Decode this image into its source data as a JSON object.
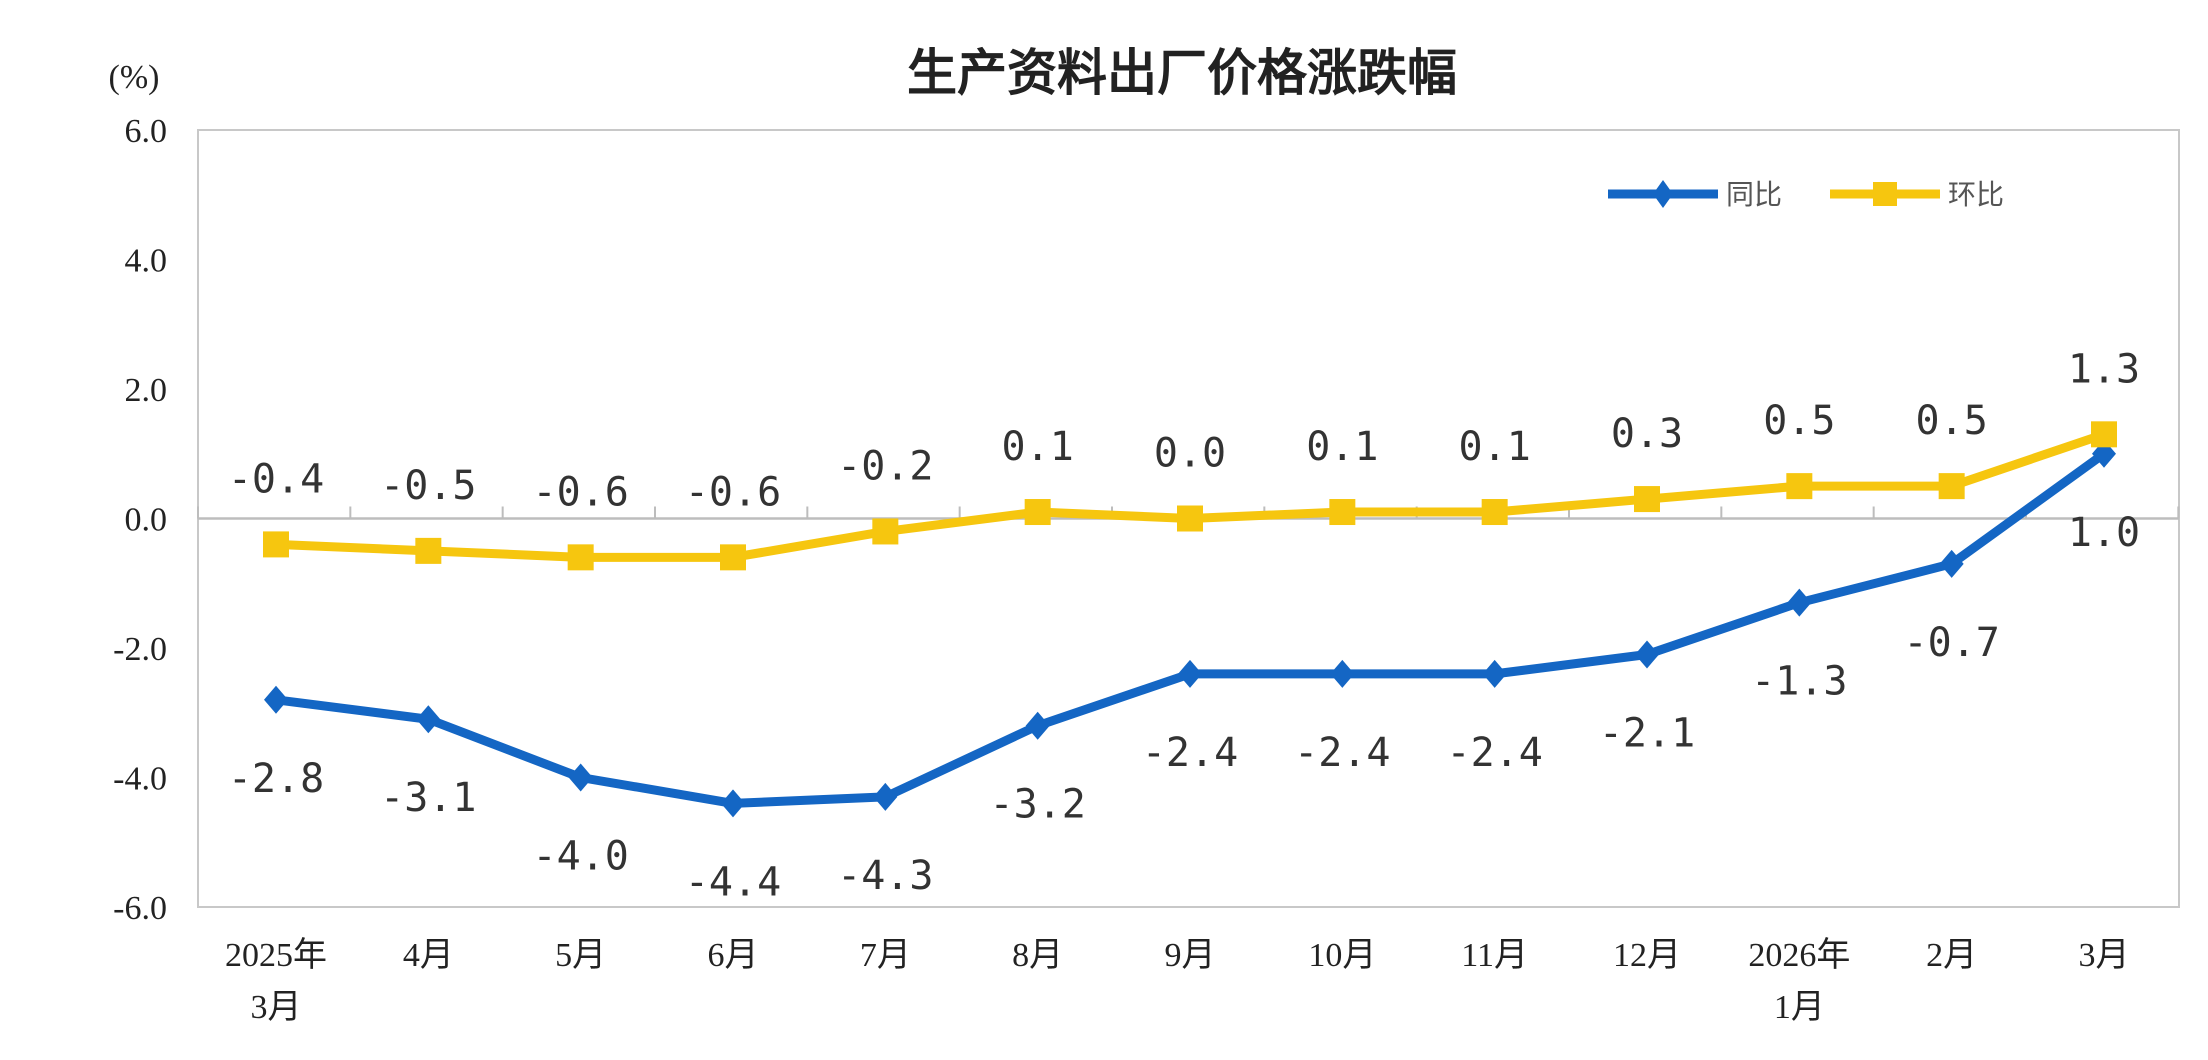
{
  "chart_data": {
    "type": "line",
    "title": "生产资料出厂价格涨跌幅",
    "ylabel": "(%)",
    "xlabel": "",
    "ylim": [
      -6.0,
      6.0
    ],
    "yticks": [
      "6.0",
      "4.0",
      "2.0",
      "0.0",
      "-2.0",
      "-4.0",
      "-6.0"
    ],
    "ytick_values": [
      6,
      4,
      2,
      0,
      -2,
      -4,
      -6
    ],
    "categories": [
      [
        "2025年",
        "3月"
      ],
      [
        "4月"
      ],
      [
        "5月"
      ],
      [
        "6月"
      ],
      [
        "7月"
      ],
      [
        "8月"
      ],
      [
        "9月"
      ],
      [
        "10月"
      ],
      [
        "11月"
      ],
      [
        "12月"
      ],
      [
        "2026年",
        "1月"
      ],
      [
        "2月"
      ],
      [
        "3月"
      ]
    ],
    "grid": false,
    "legend_position": "top-right",
    "series": [
      {
        "name": "同比",
        "color": "#1466c4",
        "marker": "diamond",
        "label_position": "below",
        "values": [
          -2.8,
          -3.1,
          -4.0,
          -4.4,
          -4.3,
          -3.2,
          -2.4,
          -2.4,
          -2.4,
          -2.1,
          -1.3,
          -0.7,
          1.0
        ],
        "labels": [
          "-2.8",
          "-3.1",
          "-4.0",
          "-4.4",
          "-4.3",
          "-3.2",
          "-2.4",
          "-2.4",
          "-2.4",
          "-2.1",
          "-1.3",
          "-0.7",
          "1.0"
        ]
      },
      {
        "name": "环比",
        "color": "#f6c60f",
        "marker": "square",
        "label_position": "above",
        "values": [
          -0.4,
          -0.5,
          -0.6,
          -0.6,
          -0.2,
          0.1,
          0.0,
          0.1,
          0.1,
          0.3,
          0.5,
          0.5,
          1.3
        ],
        "labels": [
          "-0.4",
          "-0.5",
          "-0.6",
          "-0.6",
          "-0.2",
          "0.1",
          "0.0",
          "0.1",
          "0.1",
          "0.3",
          "0.5",
          "0.5",
          "1.3"
        ]
      }
    ]
  }
}
